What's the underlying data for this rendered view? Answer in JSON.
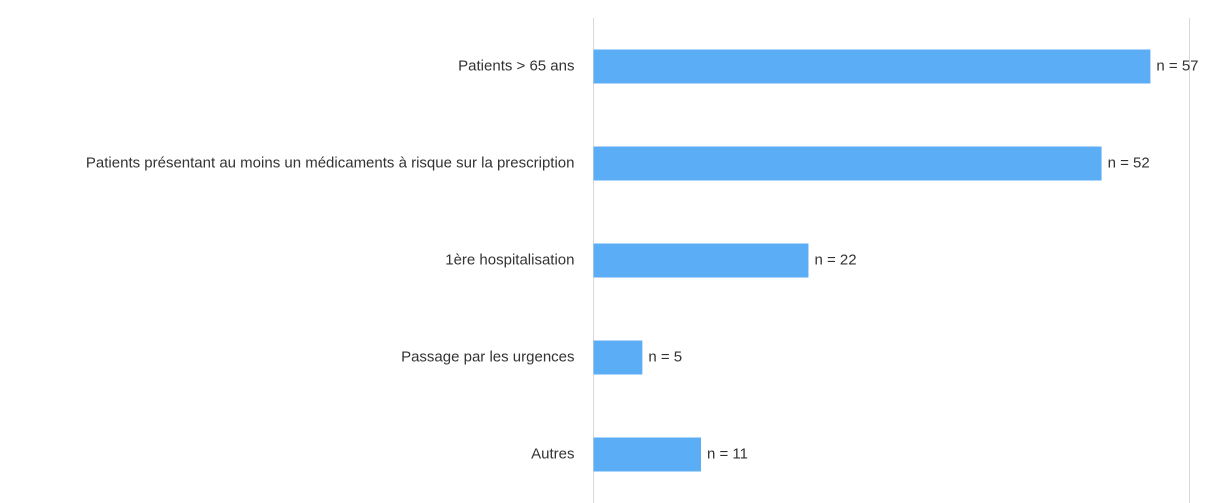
{
  "chart_data": {
    "type": "barh",
    "categories": [
      "Patients > 65 ans",
      "Patients présentant au moins un médicaments à risque sur la prescription",
      "1ère hospitalisation",
      "Passage par les urgences",
      "Autres"
    ],
    "values": [
      57,
      52,
      22,
      5,
      11
    ],
    "value_labels": [
      "n = 57",
      "n = 52",
      "n = 22",
      "n = 5",
      "n = 11"
    ],
    "color": "#5badf5",
    "xlim": [
      0,
      61
    ]
  }
}
